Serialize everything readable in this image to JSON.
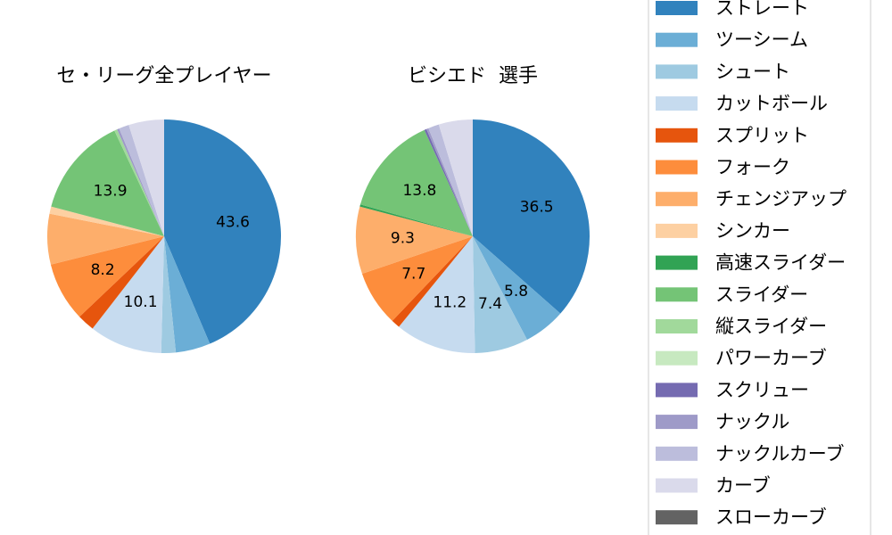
{
  "chart_data": [
    {
      "type": "pie",
      "title": "セ・リーグ全プレイヤー",
      "slices": [
        {
          "name": "ストレート",
          "value": 43.6,
          "label": "43.6"
        },
        {
          "name": "ツーシーム",
          "value": 4.8,
          "label": ""
        },
        {
          "name": "シュート",
          "value": 2.0,
          "label": ""
        },
        {
          "name": "カットボール",
          "value": 10.1,
          "label": "10.1"
        },
        {
          "name": "スプリット",
          "value": 2.4,
          "label": ""
        },
        {
          "name": "フォーク",
          "value": 8.2,
          "label": "8.2"
        },
        {
          "name": "チェンジアップ",
          "value": 7.0,
          "label": ""
        },
        {
          "name": "シンカー",
          "value": 1.0,
          "label": ""
        },
        {
          "name": "高速スライダー",
          "value": 0.0,
          "label": ""
        },
        {
          "name": "スライダー",
          "value": 13.9,
          "label": "13.9"
        },
        {
          "name": "縦スライダー",
          "value": 0.4,
          "label": ""
        },
        {
          "name": "パワーカーブ",
          "value": 0.0,
          "label": ""
        },
        {
          "name": "スクリュー",
          "value": 0.0,
          "label": ""
        },
        {
          "name": "ナックル",
          "value": 0.3,
          "label": ""
        },
        {
          "name": "ナックルカーブ",
          "value": 1.4,
          "label": ""
        },
        {
          "name": "カーブ",
          "value": 4.9,
          "label": ""
        },
        {
          "name": "スローカーブ",
          "value": 0.0,
          "label": ""
        }
      ]
    },
    {
      "type": "pie",
      "title": "ビシエド  選手",
      "slices": [
        {
          "name": "ストレート",
          "value": 36.5,
          "label": "36.5"
        },
        {
          "name": "ツーシーム",
          "value": 5.8,
          "label": "5.8"
        },
        {
          "name": "シュート",
          "value": 7.4,
          "label": "7.4"
        },
        {
          "name": "カットボール",
          "value": 11.2,
          "label": "11.2"
        },
        {
          "name": "スプリット",
          "value": 1.2,
          "label": ""
        },
        {
          "name": "フォーク",
          "value": 7.7,
          "label": "7.7"
        },
        {
          "name": "チェンジアップ",
          "value": 9.3,
          "label": "9.3"
        },
        {
          "name": "シンカー",
          "value": 0.0,
          "label": ""
        },
        {
          "name": "高速スライダー",
          "value": 0.3,
          "label": ""
        },
        {
          "name": "スライダー",
          "value": 13.8,
          "label": "13.8"
        },
        {
          "name": "縦スライダー",
          "value": 0.0,
          "label": ""
        },
        {
          "name": "パワーカーブ",
          "value": 0.0,
          "label": ""
        },
        {
          "name": "スクリュー",
          "value": 0.3,
          "label": ""
        },
        {
          "name": "ナックル",
          "value": 0.3,
          "label": ""
        },
        {
          "name": "ナックルカーブ",
          "value": 1.5,
          "label": ""
        },
        {
          "name": "カーブ",
          "value": 4.7,
          "label": ""
        },
        {
          "name": "スローカーブ",
          "value": 0.0,
          "label": ""
        }
      ]
    }
  ],
  "legend": {
    "placement": "right",
    "items": [
      {
        "name": "ストレート",
        "color": "#3182bd"
      },
      {
        "name": "ツーシーム",
        "color": "#6baed6"
      },
      {
        "name": "シュート",
        "color": "#9ecae1"
      },
      {
        "name": "カットボール",
        "color": "#c6dbef"
      },
      {
        "name": "スプリット",
        "color": "#e6550d"
      },
      {
        "name": "フォーク",
        "color": "#fd8d3c"
      },
      {
        "name": "チェンジアップ",
        "color": "#fdae6b"
      },
      {
        "name": "シンカー",
        "color": "#fdd0a2"
      },
      {
        "name": "高速スライダー",
        "color": "#31a354"
      },
      {
        "name": "スライダー",
        "color": "#74c476"
      },
      {
        "name": "縦スライダー",
        "color": "#a1d99b"
      },
      {
        "name": "パワーカーブ",
        "color": "#c7e9c0"
      },
      {
        "name": "スクリュー",
        "color": "#756bb1"
      },
      {
        "name": "ナックル",
        "color": "#9e9ac8"
      },
      {
        "name": "ナックルカーブ",
        "color": "#bcbddc"
      },
      {
        "name": "カーブ",
        "color": "#dadaeb"
      },
      {
        "name": "スローカーブ",
        "color": "#636363"
      }
    ]
  }
}
